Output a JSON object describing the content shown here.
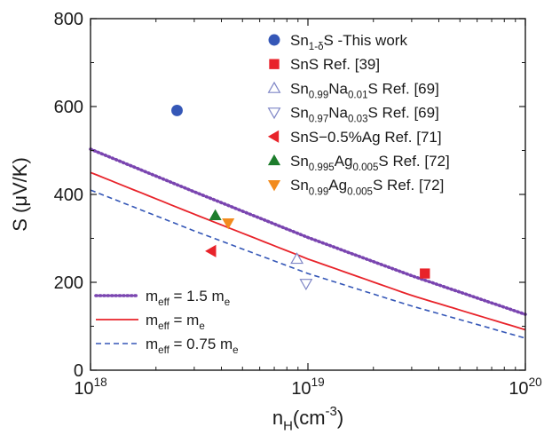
{
  "chart_data": {
    "type": "scatter",
    "x_scale": "log",
    "xlim": [
      1e+18,
      1e+20
    ],
    "ylim": [
      0,
      800
    ],
    "xlabel": {
      "base": "n",
      "sub": "H",
      "rest": "(cm",
      "sup": "-3",
      "close": ")"
    },
    "ylabel": "S (μV/K)",
    "x_ticks": [
      {
        "value": 1e+18,
        "base": "10",
        "exp": "18"
      },
      {
        "value": 1e+19,
        "base": "10",
        "exp": "19"
      },
      {
        "value": 1e+20,
        "base": "10",
        "exp": "20"
      }
    ],
    "y_ticks": [
      0,
      200,
      400,
      600,
      800
    ],
    "grid": false,
    "legend_position": "top-right",
    "points": [
      {
        "marker": "circle",
        "color": "#3557b7",
        "filled": true,
        "x": 2.5e+18,
        "y": 591,
        "label": [
          [
            "Sn",
            ""
          ],
          [
            "1-δ",
            "sub"
          ],
          [
            "S   -This work",
            ""
          ]
        ]
      },
      {
        "marker": "square",
        "color": "#e8232a",
        "filled": true,
        "x": 3.45e+19,
        "y": 220,
        "label": [
          [
            "SnS     Ref. [39]",
            ""
          ]
        ]
      },
      {
        "marker": "triangle-up",
        "color": "#7f86c6",
        "filled": false,
        "x": 8.9e+18,
        "y": 253,
        "label": [
          [
            "Sn",
            ""
          ],
          [
            "0.99",
            "sub"
          ],
          [
            "Na",
            ""
          ],
          [
            "0.01",
            "sub"
          ],
          [
            "S     Ref. [69]",
            ""
          ]
        ]
      },
      {
        "marker": "triangle-down",
        "color": "#7f86c6",
        "filled": false,
        "x": 9.8e+18,
        "y": 197,
        "label": [
          [
            "Sn",
            ""
          ],
          [
            "0.97",
            "sub"
          ],
          [
            "Na",
            ""
          ],
          [
            "0.03",
            "sub"
          ],
          [
            "S     Ref. [69]",
            ""
          ]
        ]
      },
      {
        "marker": "triangle-left",
        "color": "#e8232a",
        "filled": true,
        "x": 3.6e+18,
        "y": 271,
        "label": [
          [
            "SnS−0.5%Ag        Ref. [71]",
            ""
          ]
        ]
      },
      {
        "marker": "triangle-up",
        "color": "#1d7d2c",
        "filled": true,
        "x": 3.75e+18,
        "y": 352,
        "label": [
          [
            "Sn",
            ""
          ],
          [
            "0.995",
            "sub"
          ],
          [
            "Ag",
            ""
          ],
          [
            "0.005",
            "sub"
          ],
          [
            "S     Ref. [72]",
            ""
          ]
        ]
      },
      {
        "marker": "triangle-down",
        "color": "#f28b1e",
        "filled": true,
        "x": 4.3e+18,
        "y": 335,
        "label": [
          [
            "Sn",
            ""
          ],
          [
            "0.99",
            "sub"
          ],
          [
            "Ag",
            ""
          ],
          [
            "0.005",
            "sub"
          ],
          [
            "S      Ref. [72]",
            ""
          ]
        ]
      }
    ],
    "lines": [
      {
        "style": "dotted",
        "color": "#7a45b0",
        "label": [
          [
            "m",
            ""
          ],
          [
            "eff",
            "sub"
          ],
          [
            " = 1.5 m",
            ""
          ],
          [
            "e",
            "sub"
          ]
        ],
        "x": [
          1e+18,
          3e+18,
          1e+19,
          3e+19,
          1e+20
        ],
        "y": [
          503,
          406,
          302,
          215,
          127
        ]
      },
      {
        "style": "solid",
        "color": "#e8232a",
        "label": [
          [
            "m",
            ""
          ],
          [
            "eff",
            "sub"
          ],
          [
            " = m",
            ""
          ],
          [
            "e",
            "sub"
          ]
        ],
        "x": [
          1e+18,
          3e+18,
          1e+19,
          3e+19,
          1e+20
        ],
        "y": [
          450,
          355,
          253,
          170,
          92
        ]
      },
      {
        "style": "dashed",
        "color": "#3557b7",
        "label": [
          [
            "m",
            ""
          ],
          [
            "eff",
            "sub"
          ],
          [
            " = 0.75 m",
            ""
          ],
          [
            "e",
            "sub"
          ]
        ],
        "x": [
          1e+18,
          3e+18,
          1e+19,
          3e+19,
          1e+20
        ],
        "y": [
          410,
          317,
          220,
          146,
          73
        ]
      }
    ]
  }
}
